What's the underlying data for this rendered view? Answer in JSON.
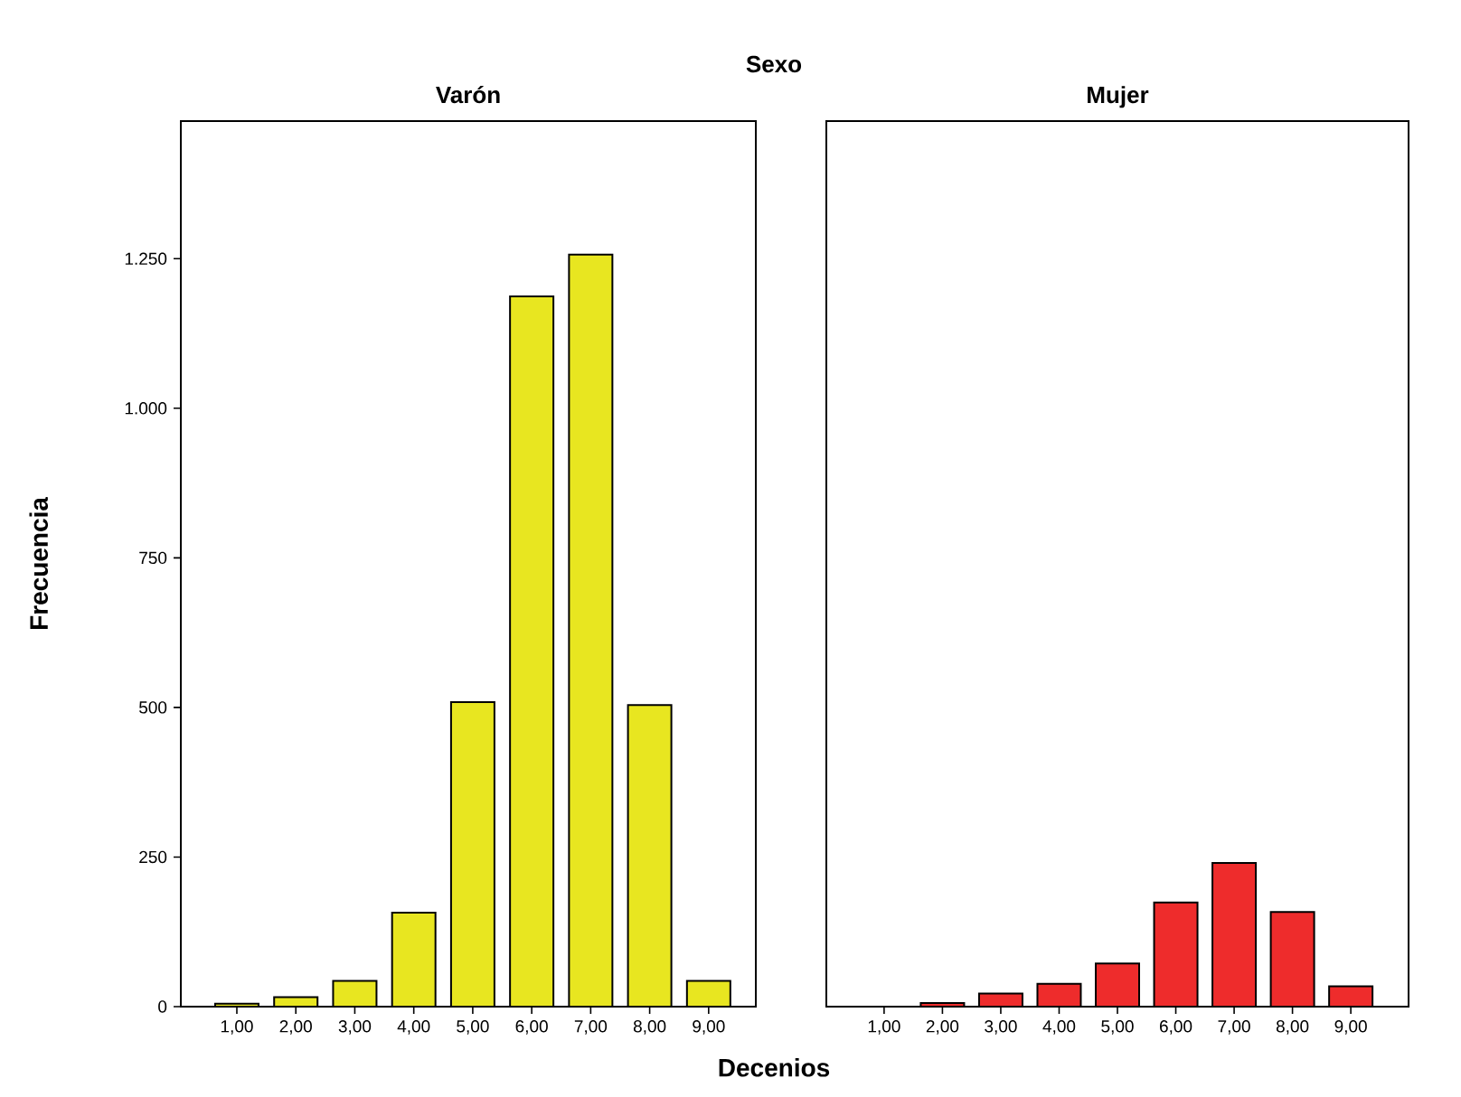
{
  "chart_data": [
    {
      "type": "bar",
      "title": "Varón",
      "annotations": [
        "Sexo"
      ],
      "xlabel": "Decenios",
      "ylabel": "Frecuencia",
      "categories": [
        "1,00",
        "2,00",
        "3,00",
        "4,00",
        "5,00",
        "6,00",
        "7,00",
        "8,00",
        "9,00"
      ],
      "values": [
        5,
        16,
        43,
        157,
        509,
        1187,
        1257,
        504,
        43
      ],
      "color": "#e8e620",
      "ylim": [
        0,
        1480
      ],
      "yticks": [
        0,
        250,
        500,
        750,
        {
          "value": 1000,
          "label": "1.000"
        },
        {
          "value": 1250,
          "label": "1.250"
        }
      ]
    },
    {
      "type": "bar",
      "title": "Mujer",
      "categories": [
        "1,00",
        "2,00",
        "3,00",
        "4,00",
        "5,00",
        "6,00",
        "7,00",
        "8,00",
        "9,00"
      ],
      "values": [
        null,
        6,
        22,
        38,
        72,
        174,
        240,
        158,
        34
      ],
      "color": "#ee2c2c",
      "ylim": [
        0,
        1480
      ],
      "tick_labels": "x"
    }
  ]
}
